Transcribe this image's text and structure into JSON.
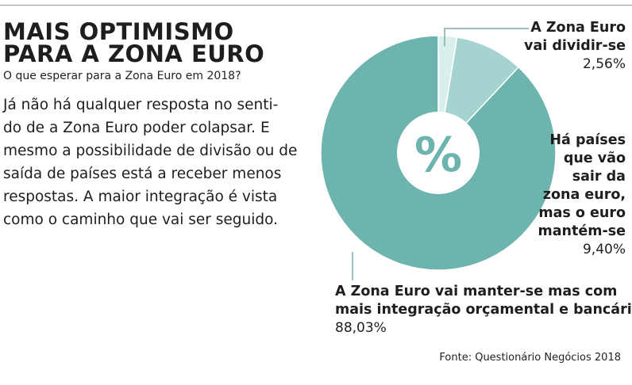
{
  "header": {
    "title_lines": [
      "MAIS OPTIMISMO",
      "PARA A ZONA EURO"
    ],
    "subtitle": "O que esperar para a Zona Euro em 2018?"
  },
  "body_lines": [
    "Já não há qualquer resposta no senti-",
    "do de a Zona Euro poder colapsar. E",
    "mesmo a possibilidade de divisão ou de",
    "saída de países está a receber menos",
    "respostas. A maior integração é vista",
    "como o caminho que vai ser seguido."
  ],
  "chart_data": {
    "type": "pie",
    "variant": "donut",
    "center_label": "%",
    "slices": [
      {
        "label_lines": [
          "A Zona Euro",
          "vai dividir-se"
        ],
        "value_text": "2,56%",
        "value": 2.56,
        "color": "#d9efec"
      },
      {
        "label_lines": [
          "Há países",
          "que vão",
          "sair da",
          "zona euro,",
          "mas o euro",
          "mantém-se"
        ],
        "value_text": "9,40%",
        "value": 9.4,
        "color": "#a5d3cf"
      },
      {
        "label_lines": [
          "A Zona Euro vai manter-se mas com",
          "mais integração orçamental e bancária"
        ],
        "value_text": "88,03%",
        "value": 88.03,
        "color": "#6db3ae"
      }
    ],
    "leader_color": "#7aaca8"
  },
  "source": "Fonte: Questionário Negócios 2018"
}
